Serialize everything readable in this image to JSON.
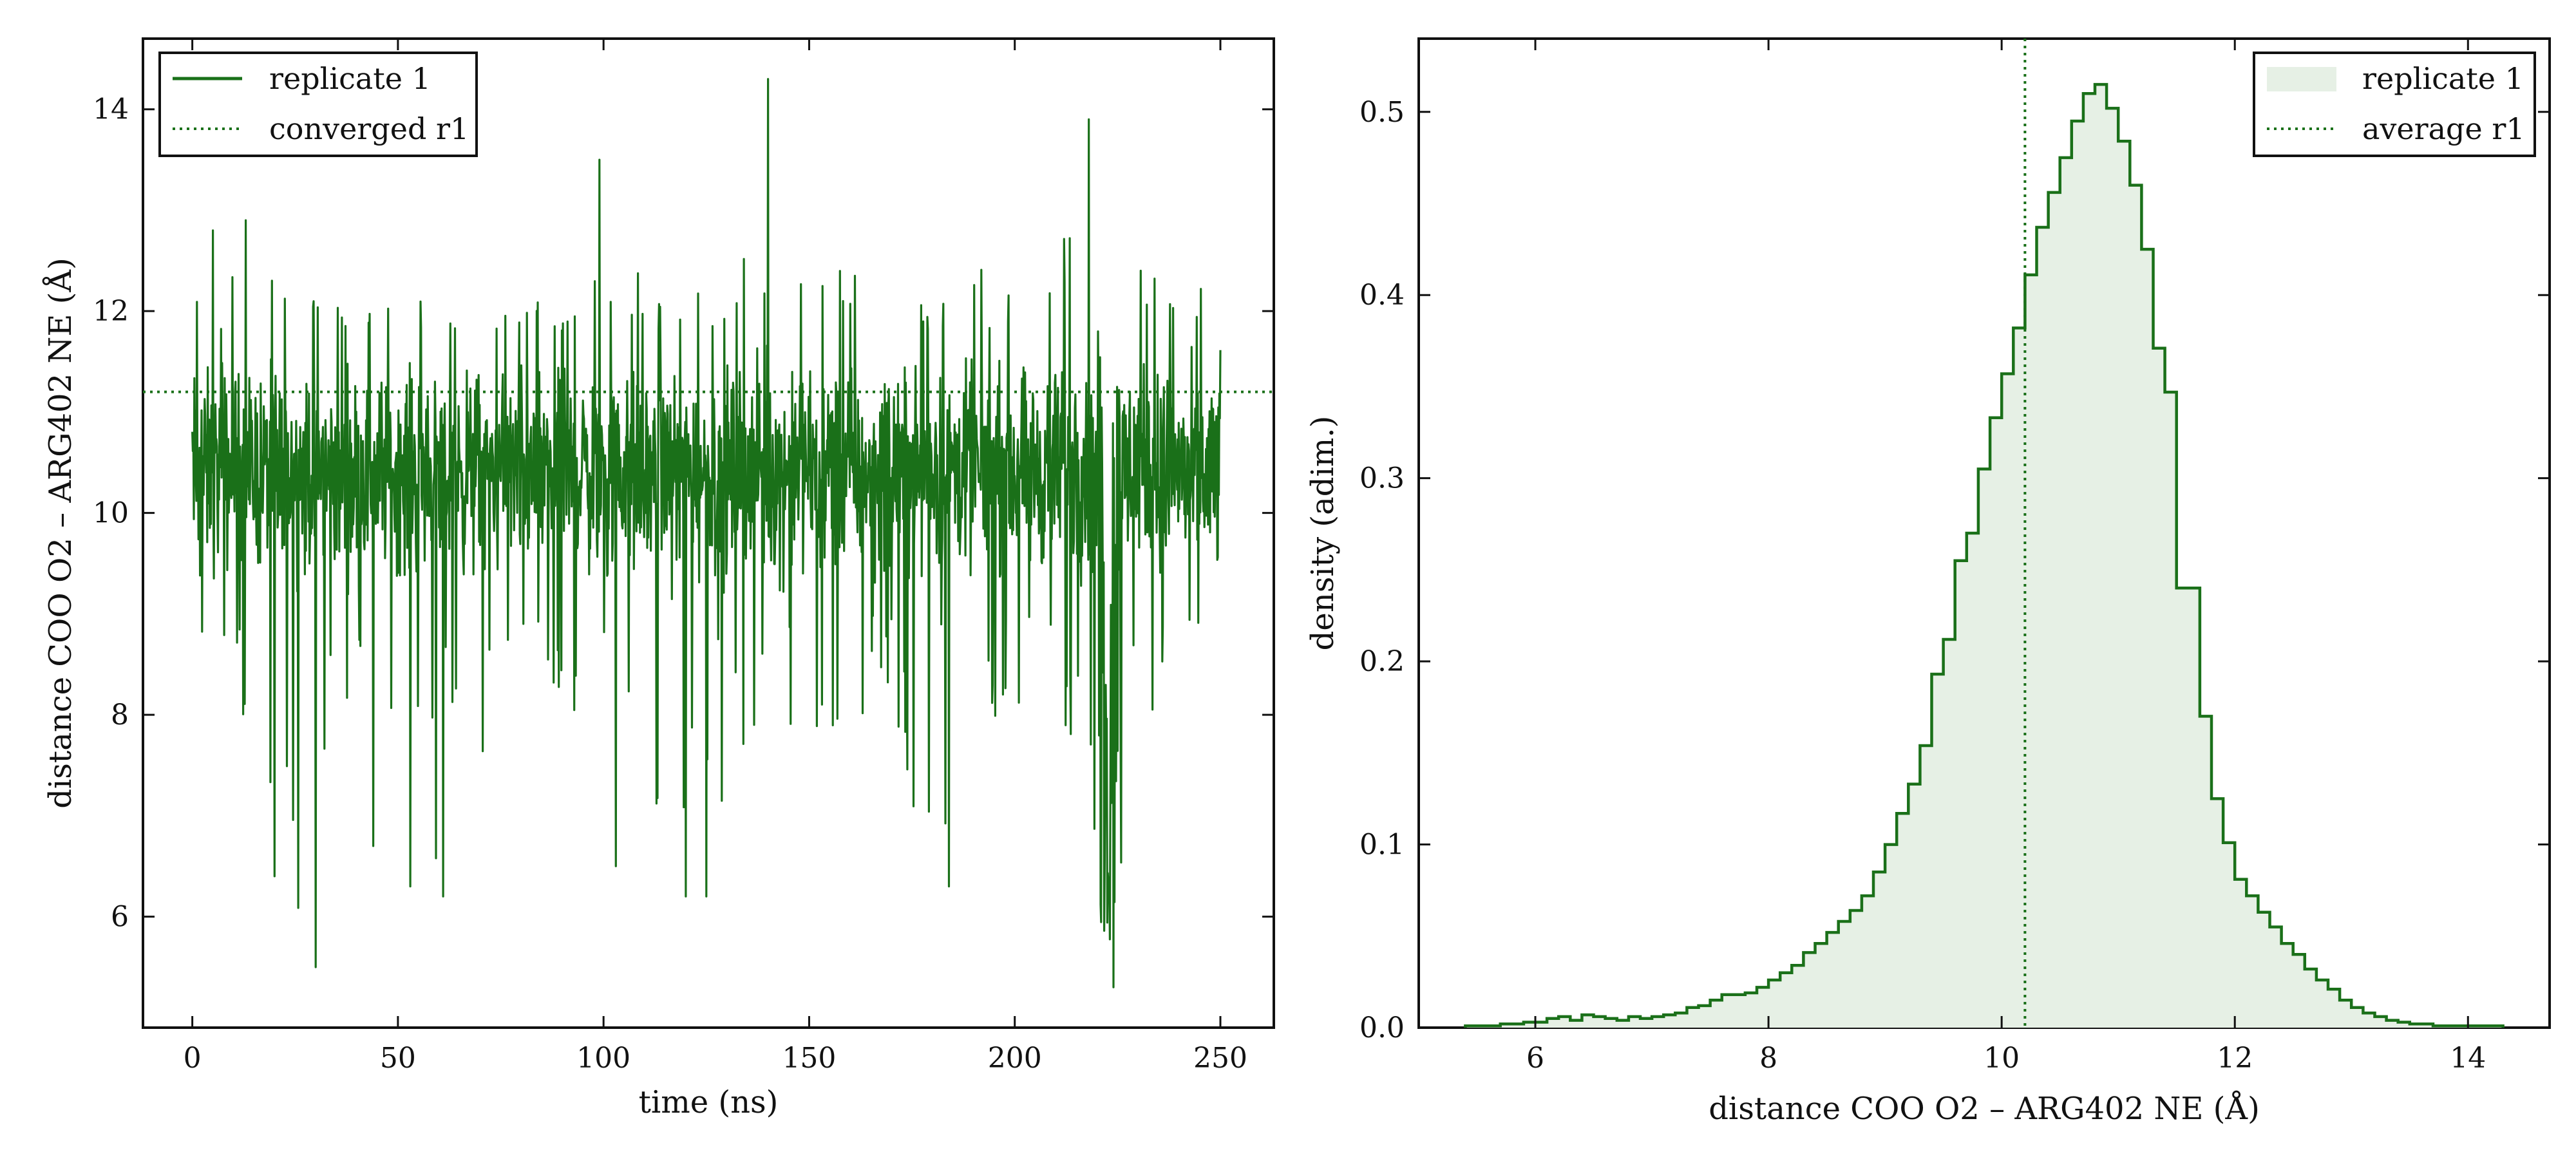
{
  "colors": {
    "line": "#1a7019",
    "fill": "#e6f0e5",
    "background": "#ffffff",
    "axes": "#111111"
  },
  "chart_data": [
    {
      "type": "line",
      "xlabel": "time (ns)",
      "ylabel": "distance COO O2 – ARG402 NE (Å)",
      "xlim": [
        -12,
        263
      ],
      "ylim": [
        4.9,
        14.7
      ],
      "xticks": [
        0,
        50,
        100,
        150,
        200,
        250
      ],
      "yticks": [
        6,
        8,
        10,
        12,
        14
      ],
      "grid": false,
      "legend_position": "top-left",
      "series": [
        {
          "name": "replicate 1",
          "style": "solid",
          "x_range": [
            0,
            250
          ],
          "mean": 10.2,
          "baseline_spread": [
            9.0,
            11.8
          ],
          "envelope": [
            [
              0,
              8.7,
              12.4
            ],
            [
              10,
              8.3,
              12.6
            ],
            [
              20,
              6.4,
              12.3
            ],
            [
              30,
              5.5,
              12.1
            ],
            [
              40,
              7.8,
              12.0
            ],
            [
              50,
              8.1,
              12.1
            ],
            [
              60,
              6.2,
              12.2
            ],
            [
              70,
              7.5,
              12.0
            ],
            [
              80,
              8.3,
              12.1
            ],
            [
              90,
              8.0,
              12.3
            ],
            [
              100,
              7.8,
              13.5
            ],
            [
              110,
              6.5,
              12.3
            ],
            [
              120,
              6.2,
              12.2
            ],
            [
              130,
              7.2,
              12.2
            ],
            [
              140,
              7.8,
              14.3
            ],
            [
              150,
              7.4,
              12.2
            ],
            [
              160,
              7.6,
              12.5
            ],
            [
              170,
              8.0,
              12.2
            ],
            [
              180,
              6.3,
              12.1
            ],
            [
              190,
              7.5,
              12.4
            ],
            [
              200,
              8.0,
              12.5
            ],
            [
              210,
              8.0,
              12.8
            ],
            [
              218,
              7.2,
              13.9
            ],
            [
              222,
              5.3,
              11.0
            ],
            [
              226,
              6.0,
              12.5
            ],
            [
              230,
              8.0,
              13.1
            ],
            [
              240,
              8.1,
              12.9
            ],
            [
              250,
              8.1,
              12.6
            ]
          ],
          "spikes": [
            [
              5,
              12.8
            ],
            [
              13,
              12.9
            ],
            [
              20,
              6.4
            ],
            [
              30,
              5.5
            ],
            [
              44,
              6.7
            ],
            [
              53,
              6.3
            ],
            [
              61,
              6.2
            ],
            [
              99,
              13.5
            ],
            [
              103,
              6.5
            ],
            [
              120,
              6.2
            ],
            [
              125,
              6.2
            ],
            [
              140,
              14.3
            ],
            [
              184,
              6.3
            ],
            [
              218,
              13.9
            ],
            [
              224,
              5.3
            ]
          ]
        },
        {
          "name": "converged r1",
          "style": "dotted",
          "y": 11.2
        }
      ]
    },
    {
      "type": "bar",
      "subtype": "step-histogram",
      "xlabel": "distance COO O2 – ARG402 NE (Å)",
      "ylabel": "density (adim.)",
      "xlim": [
        5.0,
        14.7
      ],
      "ylim": [
        0,
        0.54
      ],
      "xticks": [
        6,
        8,
        10,
        12,
        14
      ],
      "yticks": [
        0.0,
        0.1,
        0.2,
        0.3,
        0.4,
        0.5
      ],
      "grid": false,
      "legend_position": "top-right",
      "bin_start": 5.4,
      "bin_width": 0.1,
      "values": [
        0.001,
        0.001,
        0.001,
        0.002,
        0.002,
        0.003,
        0.003,
        0.005,
        0.006,
        0.004,
        0.007,
        0.006,
        0.005,
        0.004,
        0.006,
        0.005,
        0.006,
        0.007,
        0.008,
        0.011,
        0.012,
        0.015,
        0.018,
        0.018,
        0.019,
        0.022,
        0.026,
        0.03,
        0.034,
        0.041,
        0.046,
        0.052,
        0.058,
        0.064,
        0.072,
        0.085,
        0.1,
        0.117,
        0.133,
        0.154,
        0.193,
        0.212,
        0.255,
        0.27,
        0.305,
        0.333,
        0.357,
        0.382,
        0.411,
        0.437,
        0.456,
        0.475,
        0.495,
        0.51,
        0.515,
        0.502,
        0.484,
        0.46,
        0.425,
        0.371,
        0.347,
        0.24,
        0.24,
        0.17,
        0.125,
        0.101,
        0.081,
        0.072,
        0.063,
        0.055,
        0.046,
        0.04,
        0.032,
        0.026,
        0.021,
        0.015,
        0.011,
        0.008,
        0.006,
        0.004,
        0.003,
        0.002,
        0.002,
        0.001,
        0.001,
        0.001,
        0.001,
        0.001,
        0.001
      ],
      "series": [
        {
          "name": "replicate 1",
          "style": "filled-step"
        },
        {
          "name": "average r1",
          "style": "dotted-vertical",
          "x": 10.2
        }
      ]
    }
  ]
}
